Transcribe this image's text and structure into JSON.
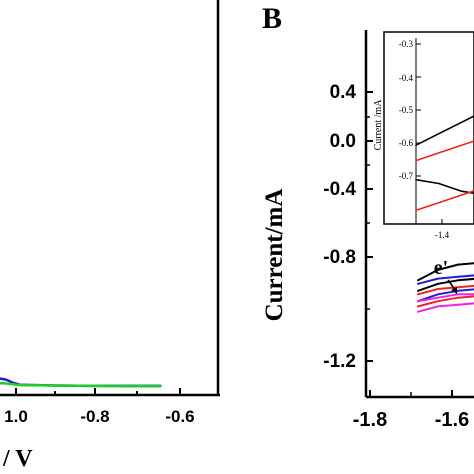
{
  "colors": {
    "axis": "#000000",
    "black": "#000000",
    "blue": "#1f1fcf",
    "green": "#22cc22",
    "red": "#ee2222",
    "magenta": "#ee22ee",
    "navy": "#000080"
  },
  "chart_data": [
    {
      "type": "line",
      "panel_label": "",
      "xlabel": "/ V",
      "ylabel": "",
      "x_tick_labels": [
        "1.0",
        "-0.8",
        "-0.6"
      ],
      "xlim": [
        -1.08,
        -0.53
      ],
      "ylim": [
        0,
        1
      ],
      "series": [
        {
          "color": "#1f1fcf",
          "x": [
            -1.08,
            -1.06,
            -1.04,
            -1.02,
            -1.0,
            -0.9,
            -0.8,
            -0.7,
            -0.6
          ],
          "y": [
            0.035,
            0.042,
            0.039,
            0.031,
            0.026,
            0.024,
            0.023,
            0.023,
            0.023
          ]
        },
        {
          "color": "#22cc22",
          "x": [
            -1.08,
            -1.05,
            -1.02,
            -1.0,
            -0.9,
            -0.8,
            -0.7,
            -0.6
          ],
          "y": [
            0.027,
            0.03,
            0.027,
            0.025,
            0.024,
            0.023,
            0.022,
            0.022
          ]
        }
      ]
    },
    {
      "type": "line",
      "panel_label": "B",
      "ylabel": "Current/mA",
      "y_tick_labels": [
        "0.4",
        "0.0",
        "-0.4",
        "-0.8",
        "-1.2"
      ],
      "x_tick_labels": [
        "-1.8",
        "-1.6"
      ],
      "xlim": [
        -1.9,
        -1.5
      ],
      "ylim": [
        -1.45,
        0.6
      ],
      "annotation": "e'",
      "series": [
        {
          "color": "#000000",
          "x": [
            -1.65,
            -1.6,
            -1.55,
            -1.5
          ],
          "y": [
            -0.78,
            -0.72,
            -0.69,
            -0.68
          ]
        },
        {
          "color": "#000000",
          "x": [
            -1.65,
            -1.6,
            -1.55,
            -1.5
          ],
          "y": [
            -0.84,
            -0.8,
            -0.78,
            -0.77
          ]
        },
        {
          "color": "#1f1fcf",
          "x": [
            -1.65,
            -1.6,
            -1.55,
            -1.5
          ],
          "y": [
            -0.8,
            -0.77,
            -0.76,
            -0.75
          ]
        },
        {
          "color": "#1f1fcf",
          "x": [
            -1.65,
            -1.6,
            -1.55,
            -1.5
          ],
          "y": [
            -0.9,
            -0.86,
            -0.84,
            -0.83
          ]
        },
        {
          "color": "#ee2222",
          "x": [
            -1.65,
            -1.6,
            -1.55,
            -1.5
          ],
          "y": [
            -0.86,
            -0.83,
            -0.82,
            -0.81
          ]
        },
        {
          "color": "#ee2222",
          "x": [
            -1.65,
            -1.6,
            -1.55,
            -1.5
          ],
          "y": [
            -0.93,
            -0.9,
            -0.88,
            -0.87
          ]
        },
        {
          "color": "#ee22ee",
          "x": [
            -1.65,
            -1.6,
            -1.55,
            -1.5
          ],
          "y": [
            -0.9,
            -0.88,
            -0.86,
            -0.86
          ]
        },
        {
          "color": "#ee22ee",
          "x": [
            -1.65,
            -1.6,
            -1.55,
            -1.5
          ],
          "y": [
            -0.96,
            -0.93,
            -0.92,
            -0.91
          ]
        }
      ],
      "inset": {
        "ylabel": "Current /mA",
        "y_tick_labels": [
          "-0.3",
          "-0.4",
          "-0.5",
          "-0.6",
          "-0.7"
        ],
        "x_tick_labels": [
          "-1.4"
        ],
        "xlim": [
          -1.45,
          -1.2
        ],
        "ylim": [
          -0.75,
          -0.28
        ],
        "series": [
          {
            "color": "#000000",
            "x": [
              -1.45,
              -1.4,
              -1.35,
              -1.3,
              -1.25,
              -1.2
            ],
            "y": [
              -0.56,
              -0.53,
              -0.5,
              -0.47,
              -0.45,
              -0.43
            ]
          },
          {
            "color": "#ee2222",
            "x": [
              -1.45,
              -1.4,
              -1.35,
              -1.3,
              -1.25,
              -1.2
            ],
            "y": [
              -0.6,
              -0.58,
              -0.56,
              -0.54,
              -0.52,
              -0.51
            ]
          },
          {
            "color": "#000000",
            "x": [
              -1.45,
              -1.4,
              -1.35,
              -1.3,
              -1.25,
              -1.2
            ],
            "y": [
              -0.65,
              -0.66,
              -0.68,
              -0.69,
              -0.7,
              -0.7
            ]
          },
          {
            "color": "#ee2222",
            "x": [
              -1.45,
              -1.4,
              -1.35,
              -1.3,
              -1.25,
              -1.2
            ],
            "y": [
              -0.73,
              -0.71,
              -0.69,
              -0.67,
              -0.66,
              -0.65
            ]
          }
        ]
      }
    }
  ]
}
